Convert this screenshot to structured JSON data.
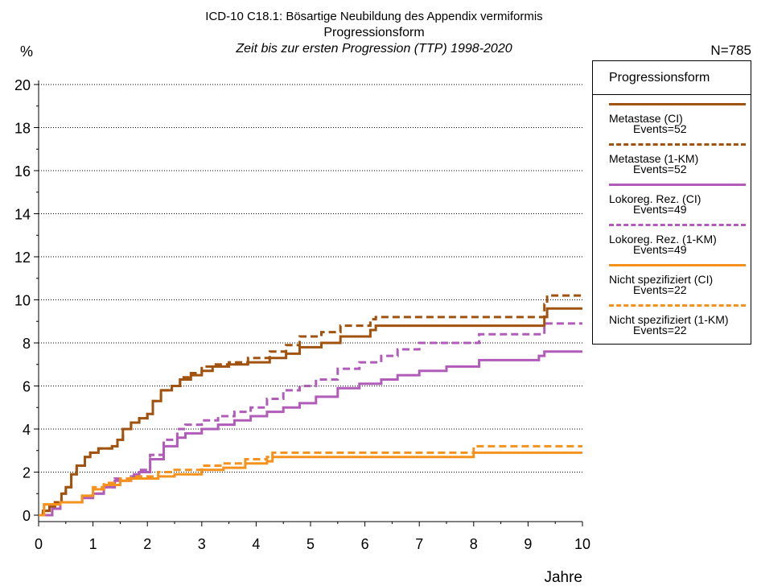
{
  "chart_data": {
    "type": "line",
    "step": true,
    "title": "ICD-10 C18.1: Bösartige Neubildung des Appendix vermiformis",
    "subtitle": "Progressionsform",
    "subtitle2": "Zeit bis zur ersten Progression (TTP) 1998-2020",
    "ylabel": "%",
    "xlabel": "Jahre",
    "n_label": "N=785",
    "xlim": [
      0,
      10
    ],
    "ylim": [
      0,
      20
    ],
    "xticks": [
      0,
      1,
      2,
      3,
      4,
      5,
      6,
      7,
      8,
      9,
      10
    ],
    "yticks": [
      0,
      2,
      4,
      6,
      8,
      10,
      12,
      14,
      16,
      18,
      20
    ],
    "grid": "horizontal dotted",
    "legend": {
      "title": "Progressionsform",
      "placement": "right"
    },
    "series": [
      {
        "name": "Metastase (CI)",
        "events": "Events=52",
        "color": "#a0520f",
        "dash": "solid",
        "points": [
          [
            0,
            0
          ],
          [
            0.08,
            0.2
          ],
          [
            0.2,
            0.4
          ],
          [
            0.3,
            0.6
          ],
          [
            0.42,
            1.0
          ],
          [
            0.5,
            1.3
          ],
          [
            0.6,
            1.9
          ],
          [
            0.7,
            2.3
          ],
          [
            0.85,
            2.7
          ],
          [
            0.95,
            2.9
          ],
          [
            1.1,
            3.1
          ],
          [
            1.35,
            3.2
          ],
          [
            1.45,
            3.5
          ],
          [
            1.55,
            4.0
          ],
          [
            1.7,
            4.3
          ],
          [
            1.85,
            4.5
          ],
          [
            2.0,
            4.7
          ],
          [
            2.1,
            5.3
          ],
          [
            2.25,
            5.8
          ],
          [
            2.45,
            6.0
          ],
          [
            2.6,
            6.3
          ],
          [
            2.8,
            6.5
          ],
          [
            3.0,
            6.7
          ],
          [
            3.2,
            6.9
          ],
          [
            3.5,
            7.0
          ],
          [
            3.85,
            7.1
          ],
          [
            4.25,
            7.3
          ],
          [
            4.55,
            7.5
          ],
          [
            4.8,
            7.8
          ],
          [
            5.2,
            8.0
          ],
          [
            5.55,
            8.3
          ],
          [
            6.1,
            8.6
          ],
          [
            6.2,
            8.8
          ],
          [
            7.3,
            8.8
          ],
          [
            9.15,
            8.8
          ],
          [
            9.3,
            9.2
          ],
          [
            9.35,
            9.6
          ],
          [
            10,
            9.6
          ]
        ]
      },
      {
        "name": "Metastase (1-KM)",
        "events": "Events=52",
        "color": "#a0520f",
        "dash": "dashed",
        "points": [
          [
            0,
            0
          ],
          [
            0.08,
            0.2
          ],
          [
            0.2,
            0.4
          ],
          [
            0.3,
            0.6
          ],
          [
            0.42,
            1.0
          ],
          [
            0.5,
            1.3
          ],
          [
            0.6,
            1.9
          ],
          [
            0.7,
            2.3
          ],
          [
            0.85,
            2.7
          ],
          [
            0.95,
            2.9
          ],
          [
            1.1,
            3.1
          ],
          [
            1.35,
            3.2
          ],
          [
            1.45,
            3.5
          ],
          [
            1.55,
            4.0
          ],
          [
            1.7,
            4.3
          ],
          [
            1.85,
            4.5
          ],
          [
            2.0,
            4.7
          ],
          [
            2.1,
            5.3
          ],
          [
            2.25,
            5.8
          ],
          [
            2.45,
            6.0
          ],
          [
            2.6,
            6.4
          ],
          [
            2.8,
            6.6
          ],
          [
            3.0,
            6.9
          ],
          [
            3.2,
            7.0
          ],
          [
            3.5,
            7.1
          ],
          [
            3.85,
            7.3
          ],
          [
            4.25,
            7.6
          ],
          [
            4.55,
            7.9
          ],
          [
            4.8,
            8.3
          ],
          [
            5.2,
            8.5
          ],
          [
            5.55,
            8.8
          ],
          [
            6.1,
            9.1
          ],
          [
            6.2,
            9.2
          ],
          [
            7.3,
            9.2
          ],
          [
            9.15,
            9.2
          ],
          [
            9.3,
            9.8
          ],
          [
            9.35,
            10.2
          ],
          [
            10,
            10.2
          ]
        ]
      },
      {
        "name": "Lokoreg. Rez. (CI)",
        "events": "Events=49",
        "color": "#b05cb8",
        "dash": "solid",
        "points": [
          [
            0,
            0
          ],
          [
            0.25,
            0.3
          ],
          [
            0.4,
            0.6
          ],
          [
            0.8,
            0.8
          ],
          [
            1.0,
            1.0
          ],
          [
            1.2,
            1.3
          ],
          [
            1.4,
            1.6
          ],
          [
            1.7,
            1.8
          ],
          [
            1.85,
            2.0
          ],
          [
            2.05,
            2.6
          ],
          [
            2.3,
            3.2
          ],
          [
            2.55,
            3.6
          ],
          [
            2.7,
            3.8
          ],
          [
            3.0,
            4.0
          ],
          [
            3.3,
            4.2
          ],
          [
            3.6,
            4.4
          ],
          [
            3.9,
            4.6
          ],
          [
            4.2,
            4.8
          ],
          [
            4.5,
            5.0
          ],
          [
            4.8,
            5.2
          ],
          [
            5.1,
            5.5
          ],
          [
            5.5,
            5.9
          ],
          [
            5.9,
            6.1
          ],
          [
            6.3,
            6.3
          ],
          [
            6.6,
            6.5
          ],
          [
            7.0,
            6.7
          ],
          [
            7.5,
            6.9
          ],
          [
            8.1,
            7.2
          ],
          [
            9.2,
            7.4
          ],
          [
            9.3,
            7.6
          ],
          [
            10,
            7.6
          ]
        ]
      },
      {
        "name": "Lokoreg. Rez. (1-KM)",
        "events": "Events=49",
        "color": "#b05cb8",
        "dash": "dashed",
        "points": [
          [
            0,
            0
          ],
          [
            0.25,
            0.3
          ],
          [
            0.4,
            0.6
          ],
          [
            0.8,
            0.8
          ],
          [
            1.0,
            1.0
          ],
          [
            1.2,
            1.3
          ],
          [
            1.4,
            1.7
          ],
          [
            1.7,
            1.9
          ],
          [
            1.85,
            2.1
          ],
          [
            2.05,
            2.8
          ],
          [
            2.3,
            3.5
          ],
          [
            2.55,
            4.0
          ],
          [
            2.7,
            4.2
          ],
          [
            3.0,
            4.4
          ],
          [
            3.3,
            4.6
          ],
          [
            3.6,
            4.8
          ],
          [
            3.9,
            5.0
          ],
          [
            4.2,
            5.4
          ],
          [
            4.5,
            5.8
          ],
          [
            4.8,
            6.0
          ],
          [
            5.1,
            6.3
          ],
          [
            5.5,
            6.8
          ],
          [
            5.9,
            7.1
          ],
          [
            6.3,
            7.4
          ],
          [
            6.6,
            7.7
          ],
          [
            7.0,
            8.0
          ],
          [
            7.5,
            8.0
          ],
          [
            8.1,
            8.4
          ],
          [
            9.2,
            8.4
          ],
          [
            9.3,
            8.9
          ],
          [
            10,
            8.9
          ]
        ]
      },
      {
        "name": "Nicht spezifiziert (CI)",
        "events": "Events=22",
        "color": "#f5921e",
        "dash": "solid",
        "points": [
          [
            0,
            0
          ],
          [
            0.1,
            0.5
          ],
          [
            0.4,
            0.6
          ],
          [
            0.8,
            0.9
          ],
          [
            1.0,
            1.2
          ],
          [
            1.2,
            1.4
          ],
          [
            1.5,
            1.6
          ],
          [
            1.7,
            1.7
          ],
          [
            2.2,
            1.8
          ],
          [
            2.5,
            1.9
          ],
          [
            3.0,
            2.1
          ],
          [
            3.4,
            2.2
          ],
          [
            3.8,
            2.4
          ],
          [
            4.2,
            2.5
          ],
          [
            4.3,
            2.7
          ],
          [
            7.0,
            2.7
          ],
          [
            7.95,
            2.7
          ],
          [
            8.0,
            2.9
          ],
          [
            10,
            2.9
          ]
        ]
      },
      {
        "name": "Nicht spezifiziert (1-KM)",
        "events": "Events=22",
        "color": "#f5921e",
        "dash": "dashed",
        "points": [
          [
            0,
            0
          ],
          [
            0.1,
            0.5
          ],
          [
            0.4,
            0.6
          ],
          [
            0.8,
            0.9
          ],
          [
            1.0,
            1.3
          ],
          [
            1.2,
            1.5
          ],
          [
            1.5,
            1.7
          ],
          [
            1.7,
            1.8
          ],
          [
            2.2,
            2.0
          ],
          [
            2.5,
            2.1
          ],
          [
            3.0,
            2.3
          ],
          [
            3.4,
            2.4
          ],
          [
            3.8,
            2.6
          ],
          [
            4.2,
            2.7
          ],
          [
            4.3,
            2.9
          ],
          [
            7.0,
            2.9
          ],
          [
            7.95,
            2.9
          ],
          [
            8.0,
            3.2
          ],
          [
            10,
            3.2
          ]
        ]
      }
    ]
  }
}
